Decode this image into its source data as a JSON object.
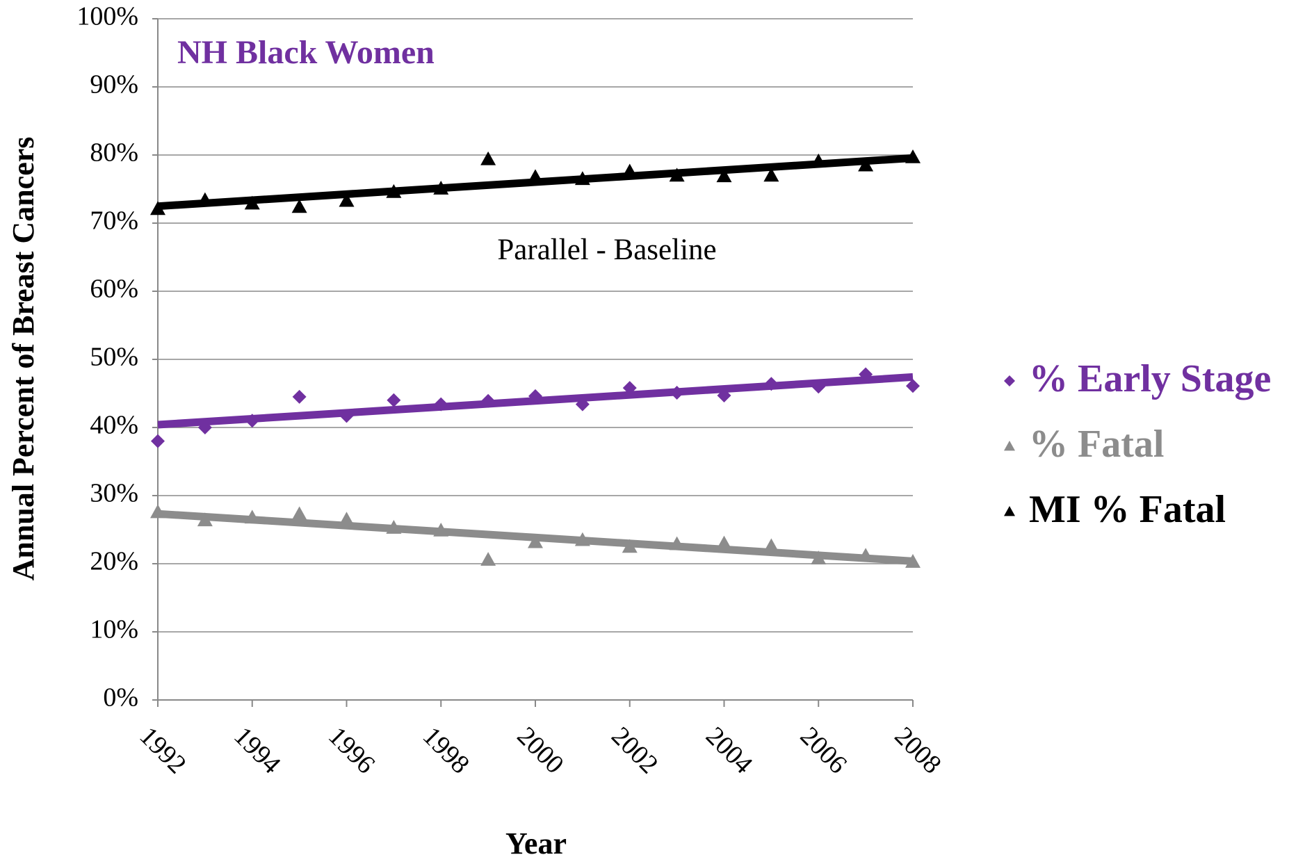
{
  "chart_data": {
    "type": "scatter",
    "annotations": [
      "NH Black Women",
      "Parallel - Baseline"
    ],
    "y_label": "Annual Percent of Breast Cancers",
    "x_label": "Year",
    "x": [
      1992,
      1993,
      1994,
      1995,
      1996,
      1997,
      1998,
      1999,
      2000,
      2001,
      2002,
      2003,
      2004,
      2005,
      2006,
      2007,
      2008
    ],
    "series": [
      {
        "name": "% Early Stage",
        "color": "#7030a0",
        "marker": "diamond",
        "trendline": true,
        "values": [
          38,
          40,
          41,
          44.5,
          41.7,
          44,
          43.4,
          43.9,
          44.6,
          43.4,
          45.8,
          45.1,
          44.7,
          46.4,
          46,
          47.8,
          46.1
        ]
      },
      {
        "name": "% Fatal",
        "color": "#8c8c8c",
        "marker": "triangle",
        "trendline": true,
        "values": [
          27.6,
          26.4,
          26.8,
          27.3,
          26.5,
          25.3,
          24.9,
          20.6,
          23.2,
          23.5,
          22.5,
          22.9,
          23,
          22.6,
          20.8,
          21.2,
          20.3
        ]
      },
      {
        "name": "MI % Fatal",
        "color": "#000000",
        "marker": "triangle",
        "trendline": true,
        "values": [
          72.1,
          73.4,
          72.9,
          72.4,
          73.3,
          74.6,
          75.1,
          79.4,
          76.8,
          76.5,
          77.6,
          77,
          76.9,
          77,
          79.1,
          78.5,
          79.7
        ]
      }
    ],
    "xlim": [
      1992,
      2008
    ],
    "xticks": [
      1992,
      1994,
      1996,
      1998,
      2000,
      2002,
      2004,
      2006,
      2008
    ],
    "ylim": [
      0,
      100
    ],
    "yticks": [
      {
        "value": 0,
        "label": "0%"
      },
      {
        "value": 10,
        "label": "10%"
      },
      {
        "value": 20,
        "label": "20%"
      },
      {
        "value": 30,
        "label": "30%"
      },
      {
        "value": 40,
        "label": "40%"
      },
      {
        "value": 50,
        "label": "50%"
      },
      {
        "value": 60,
        "label": "60%"
      },
      {
        "value": 70,
        "label": "70%"
      },
      {
        "value": 80,
        "label": "80%"
      },
      {
        "value": 90,
        "label": "90%"
      },
      {
        "value": 100,
        "label": "100%"
      }
    ],
    "grid": true,
    "legend": "right"
  }
}
